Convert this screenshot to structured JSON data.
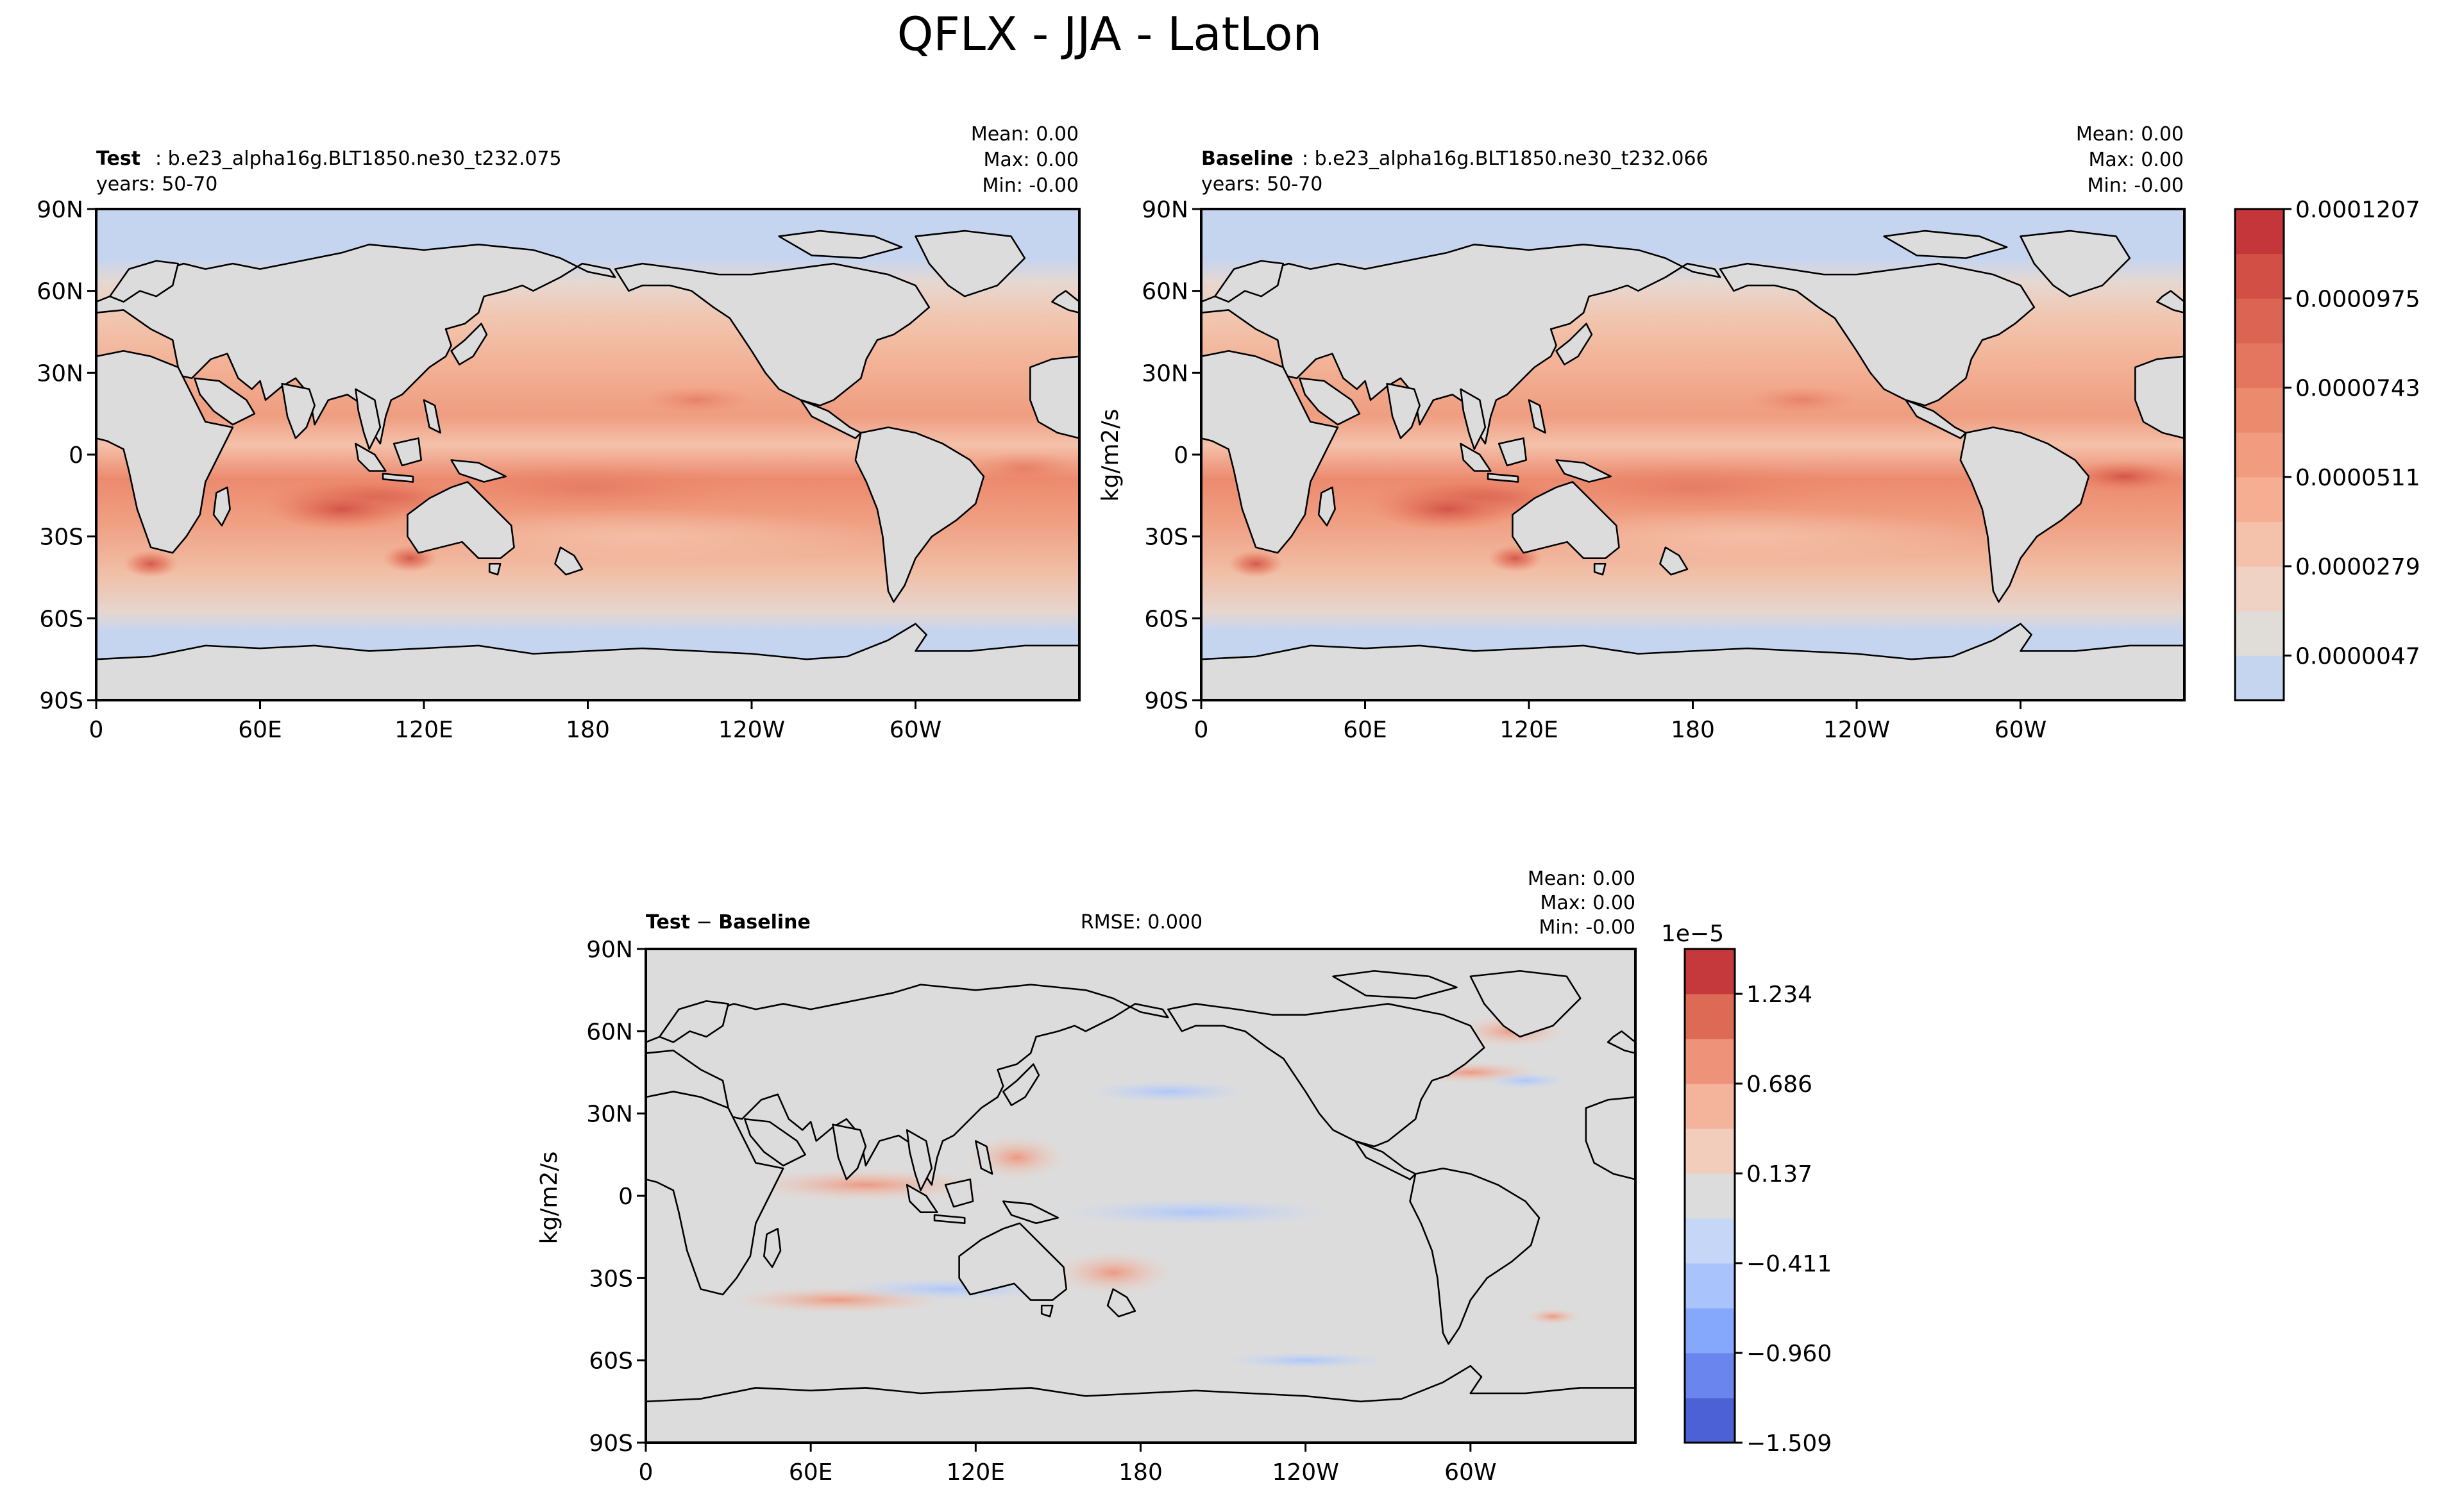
{
  "title": "QFLX - JJA - LatLon",
  "lat_ticks": [
    "90N",
    "60N",
    "30N",
    "0",
    "30S",
    "60S",
    "90S"
  ],
  "lon_ticks": [
    "0",
    "60E",
    "120E",
    "180",
    "120W",
    "60W"
  ],
  "units": "kg/m2/s",
  "colors": {
    "ocean_low": "#c5d5f0",
    "land": "#dcdcdc",
    "coast": "#000000"
  },
  "panels": {
    "test": {
      "label": "Test",
      "case": "b.e23_alpha16g.BLT1850.ne30_t232.075",
      "years": "years: 50-70",
      "mean": "Mean:  0.00",
      "max": "Max:  0.00",
      "min": "Min: -0.00"
    },
    "baseline": {
      "label": "Baseline",
      "case": "b.e23_alpha16g.BLT1850.ne30_t232.066",
      "years": "years: 50-70",
      "mean": "Mean:  0.00",
      "max": "Max:  0.00",
      "min": "Min: -0.00"
    },
    "diff": {
      "label_test": "Test",
      "label_minus": "−",
      "label_baseline": "Baseline",
      "rmse": "RMSE: 0.000",
      "mean": "Mean:  0.00",
      "max": "Max:  0.00",
      "min": "Min: -0.00"
    }
  },
  "colorbar_main": {
    "labels": [
      "0.0000047",
      "0.0000279",
      "0.0000511",
      "0.0000743",
      "0.0000975",
      "0.0001207"
    ],
    "colors": [
      "#c5d5f0",
      "#e0dcd8",
      "#efd2c4",
      "#f4c1aa",
      "#f5ae92",
      "#f29c7f",
      "#ec8a6e",
      "#e4765f",
      "#dc6452",
      "#d14f44",
      "#c4363a"
    ]
  },
  "colorbar_diff": {
    "exponent": "1e−5",
    "labels": [
      "−1.509",
      "−0.960",
      "−0.411",
      "0.137",
      "0.686",
      "1.234"
    ],
    "colors": [
      "#4c61d6",
      "#6a85ee",
      "#86a8fc",
      "#a9c4fd",
      "#c5d6f6",
      "#dcdcdc",
      "#f2cdbc",
      "#f4b39b",
      "#ee9279",
      "#dd6a55",
      "#c5393c"
    ]
  },
  "chart_data": [
    {
      "type": "heatmap",
      "title": "Test",
      "subtitle": "b.e23_alpha16g.BLT1850.ne30_t232.075",
      "ylabel": "",
      "xlim": [
        0,
        360
      ],
      "ylim": [
        -90,
        90
      ],
      "mean": 0.0,
      "max": 0.0,
      "min": 0.0,
      "levels": [
        4.7e-06,
        2.79e-05,
        5.11e-05,
        7.43e-05,
        9.75e-05,
        0.0001207
      ],
      "grid": false
    },
    {
      "type": "heatmap",
      "title": "Baseline",
      "subtitle": "b.e23_alpha16g.BLT1850.ne30_t232.066",
      "ylabel": "kg/m2/s",
      "xlim": [
        0,
        360
      ],
      "ylim": [
        -90,
        90
      ],
      "mean": 0.0,
      "max": 0.0,
      "min": 0.0,
      "levels": [
        4.7e-06,
        2.79e-05,
        5.11e-05,
        7.43e-05,
        9.75e-05,
        0.0001207
      ],
      "grid": false
    },
    {
      "type": "heatmap",
      "title": "Test − Baseline",
      "ylabel": "kg/m2/s",
      "xlim": [
        0,
        360
      ],
      "ylim": [
        -90,
        90
      ],
      "rmse": 0.0,
      "mean": 0.0,
      "max": 0.0,
      "min": 0.0,
      "levels_scale": "1e-5",
      "levels": [
        -1.509,
        -0.96,
        -0.411,
        0.137,
        0.686,
        1.234
      ],
      "grid": false
    }
  ]
}
